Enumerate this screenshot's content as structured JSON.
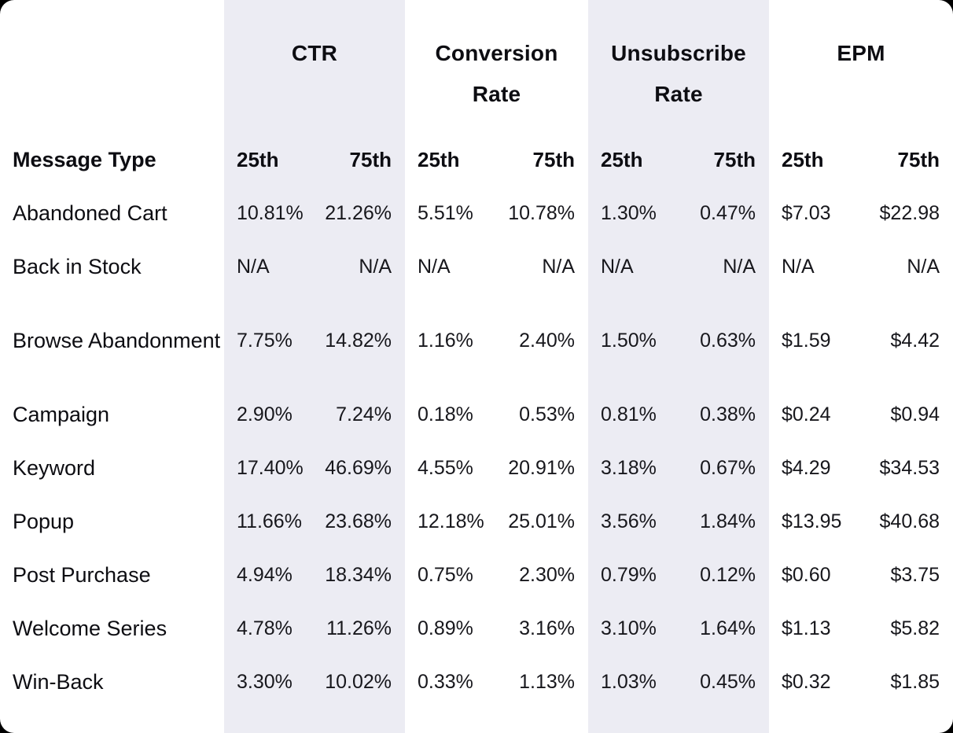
{
  "chart_data": {
    "type": "table",
    "corner_header": "Message Type",
    "column_groups": [
      {
        "label": "CTR",
        "shaded": true,
        "sub": [
          "25th",
          "75th"
        ]
      },
      {
        "label": "Conversion Rate",
        "shaded": false,
        "sub": [
          "25th",
          "75th"
        ]
      },
      {
        "label": "Unsubscribe Rate",
        "shaded": true,
        "sub": [
          "25th",
          "75th"
        ]
      },
      {
        "label": "EPM",
        "shaded": false,
        "sub": [
          "25th",
          "75th"
        ]
      }
    ],
    "rows": [
      {
        "label": "Abandoned Cart",
        "values": [
          "10.81%",
          "21.26%",
          "5.51%",
          "10.78%",
          "1.30%",
          "0.47%",
          "$7.03",
          "$22.98"
        ]
      },
      {
        "label": "Back in Stock",
        "values": [
          "N/A",
          "N/A",
          "N/A",
          "N/A",
          "N/A",
          "N/A",
          "N/A",
          "N/A"
        ]
      },
      {
        "label": "Browse Abandonment",
        "values": [
          "7.75%",
          "14.82%",
          "1.16%",
          "2.40%",
          "1.50%",
          "0.63%",
          "$1.59",
          "$4.42"
        ]
      },
      {
        "label": "Campaign",
        "values": [
          "2.90%",
          "7.24%",
          "0.18%",
          "0.53%",
          "0.81%",
          "0.38%",
          "$0.24",
          "$0.94"
        ]
      },
      {
        "label": "Keyword",
        "values": [
          "17.40%",
          "46.69%",
          "4.55%",
          "20.91%",
          "3.18%",
          "0.67%",
          "$4.29",
          "$34.53"
        ]
      },
      {
        "label": "Popup",
        "values": [
          "11.66%",
          "23.68%",
          "12.18%",
          "25.01%",
          "3.56%",
          "1.84%",
          "$13.95",
          "$40.68"
        ]
      },
      {
        "label": "Post Purchase",
        "values": [
          "4.94%",
          "18.34%",
          "0.75%",
          "2.30%",
          "0.79%",
          "0.12%",
          "$0.60",
          "$3.75"
        ]
      },
      {
        "label": "Welcome Series",
        "values": [
          "4.78%",
          "11.26%",
          "0.89%",
          "3.16%",
          "3.10%",
          "1.64%",
          "$1.13",
          "$5.82"
        ]
      },
      {
        "label": "Win-Back",
        "values": [
          "3.30%",
          "10.02%",
          "0.33%",
          "1.13%",
          "1.03%",
          "0.45%",
          "$0.32",
          "$1.85"
        ]
      }
    ]
  },
  "colors": {
    "band": "#ECECF3",
    "card_background": "#FFFFFF",
    "page_background": "#000000",
    "header_text": "#0D0D12",
    "value_text": "#17171C"
  }
}
